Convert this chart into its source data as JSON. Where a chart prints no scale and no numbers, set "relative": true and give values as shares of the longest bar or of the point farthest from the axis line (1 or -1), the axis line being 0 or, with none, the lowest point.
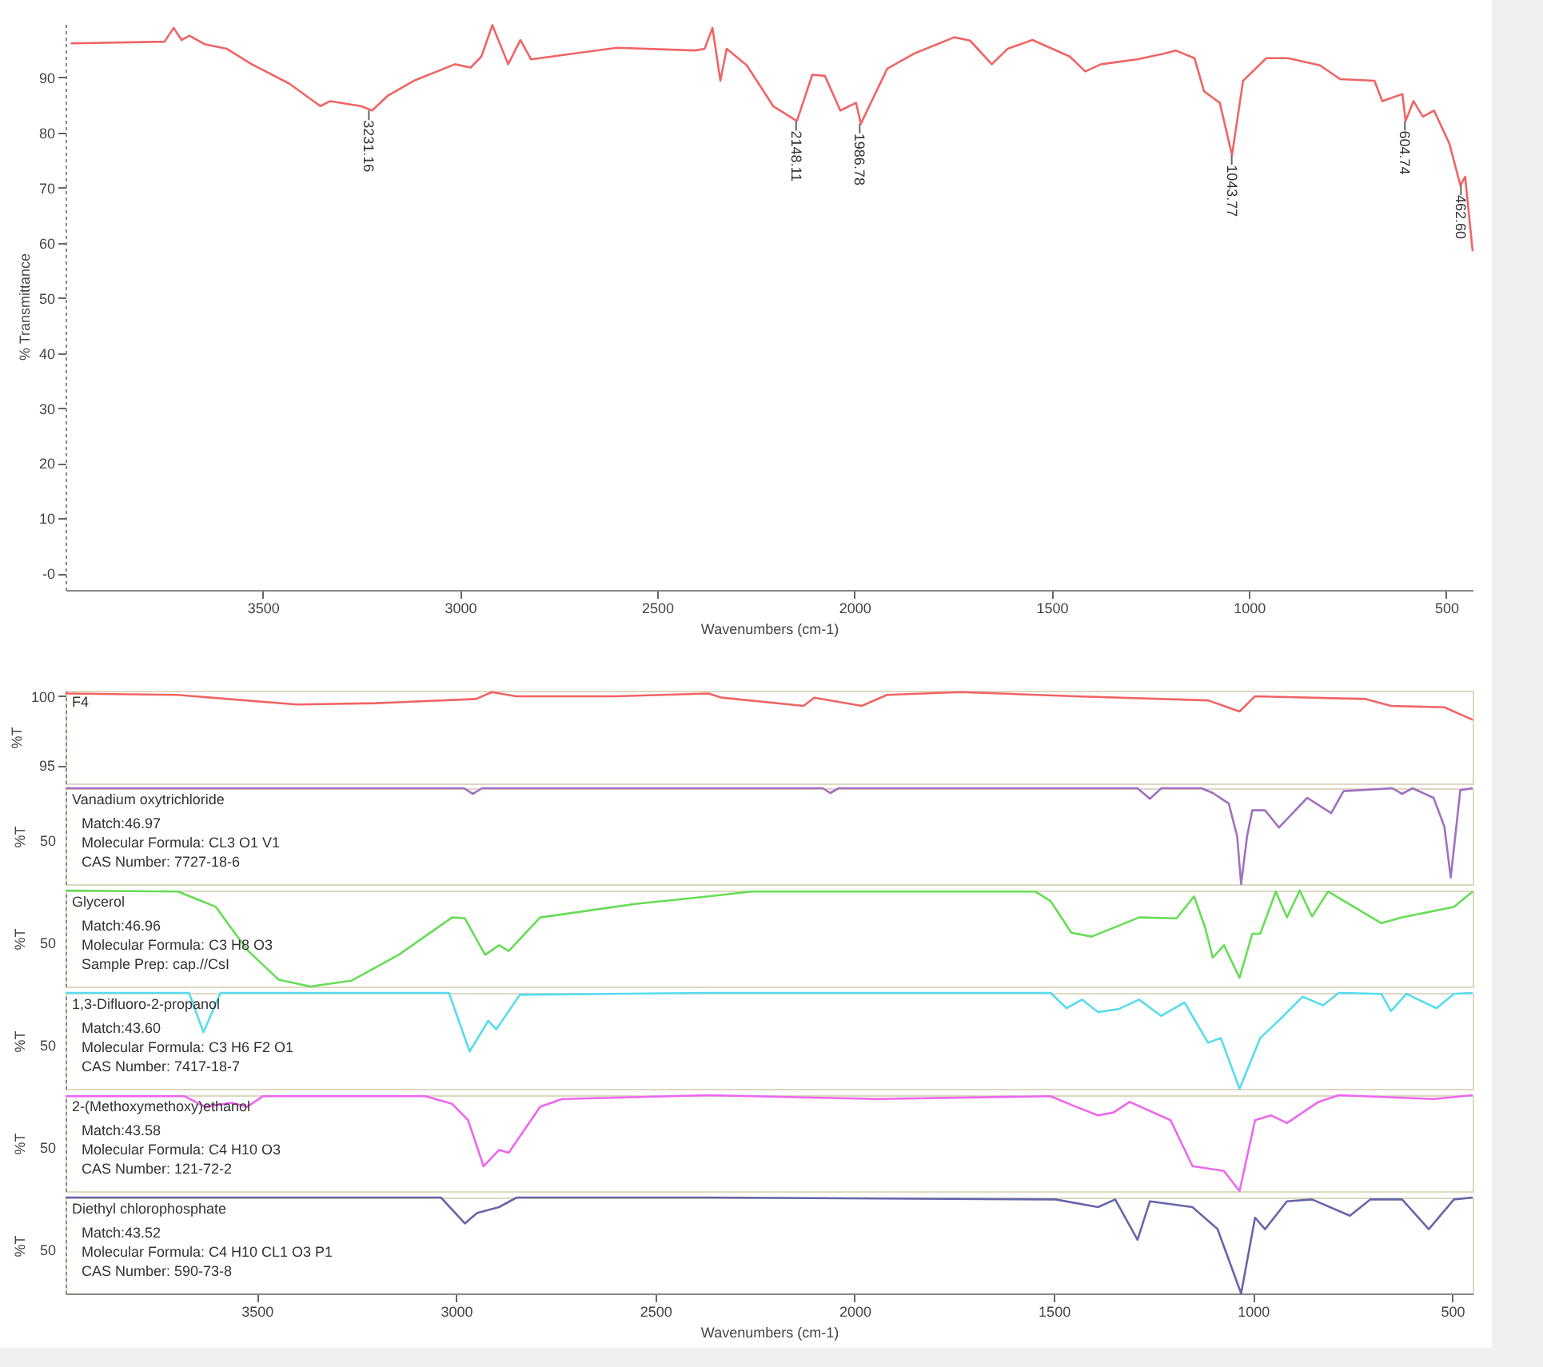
{
  "chart_data": [
    {
      "type": "line",
      "xlabel": "Wavenumbers (cm-1)",
      "ylabel": "% Transmittance",
      "xlim": [
        4000,
        433
      ],
      "xticks": [
        3500,
        3000,
        2500,
        2000,
        1500,
        1000,
        500
      ],
      "ylim": [
        -3,
        100
      ],
      "yticks": [
        {
          "value": 0,
          "label": "-0"
        },
        10,
        20,
        30,
        40,
        50,
        60,
        70,
        80,
        90
      ],
      "grid": false,
      "x": [
        3987,
        3749,
        3726,
        3706,
        3686,
        3646,
        3591,
        3528,
        3433,
        3354,
        3330,
        3251,
        3223,
        3183,
        3117,
        3013,
        2973,
        2946,
        2918,
        2878,
        2847,
        2820,
        2602,
        2405,
        2380,
        2360,
        2340,
        2324,
        2273,
        2206,
        2146,
        2107,
        2075,
        2036,
        1996,
        1984,
        1917,
        1850,
        1747,
        1707,
        1652,
        1612,
        1549,
        1454,
        1415,
        1375,
        1284,
        1217,
        1186,
        1138,
        1114,
        1074,
        1043,
        1015,
        956,
        901,
        820,
        769,
        682,
        662,
        611,
        603,
        583,
        559,
        531,
        492,
        464,
        452,
        433
      ],
      "series": [
        {
          "color": "#f06464",
          "values": [
            96.2,
            96.5,
            99.0,
            96.8,
            97.6,
            96.0,
            95.2,
            92.4,
            88.9,
            84.8,
            85.7,
            84.8,
            84.0,
            86.7,
            89.4,
            92.4,
            91.8,
            93.8,
            99.5,
            92.4,
            96.8,
            93.3,
            95.4,
            94.9,
            95.2,
            99.0,
            89.4,
            95.2,
            92.2,
            84.8,
            82.1,
            90.5,
            90.3,
            84.0,
            85.4,
            81.6,
            91.6,
            94.3,
            97.3,
            96.7,
            92.4,
            95.2,
            96.8,
            93.8,
            91.1,
            92.4,
            93.3,
            94.3,
            94.9,
            93.5,
            87.5,
            85.4,
            75.9,
            89.4,
            93.5,
            93.5,
            92.2,
            89.7,
            89.4,
            85.7,
            87.0,
            82.1,
            85.7,
            82.9,
            84.0,
            78.0,
            70.4,
            72.0,
            58.5
          ]
        }
      ],
      "annotations": [
        {
          "text": "3231.16",
          "x": 3231.16,
          "y": 84.0
        },
        {
          "text": "2148.11",
          "x": 2148.11,
          "y": 82.1
        },
        {
          "text": "1986.78",
          "x": 1986.78,
          "y": 81.6
        },
        {
          "text": "1043.77",
          "x": 1043.77,
          "y": 75.9
        },
        {
          "text": "604.74",
          "x": 604.74,
          "y": 82.1
        },
        {
          "text": "462.60",
          "x": 462.6,
          "y": 70.4
        }
      ]
    },
    {
      "type": "line",
      "ylabel": "%T",
      "xlim": [
        3980,
        449
      ],
      "xticks": [
        3500,
        3000,
        2500,
        2000,
        1500,
        1000,
        500
      ],
      "ylim": [
        93.7,
        100.4
      ],
      "yticks": [
        95,
        100
      ],
      "grid": false,
      "tick_labels": "y",
      "x": [
        3980,
        3700,
        3400,
        3200,
        2950,
        2910,
        2850,
        2600,
        2366,
        2334,
        2128,
        2101,
        1982,
        1919,
        1733,
        1445,
        1113,
        1034,
        995,
        717,
        654,
        520,
        449
      ],
      "series": [
        {
          "name": "F4",
          "color": "#f06464",
          "values": [
            100.2,
            100.1,
            99.4,
            99.5,
            99.8,
            100.3,
            100.0,
            100.0,
            100.2,
            99.9,
            99.3,
            99.9,
            99.3,
            100.1,
            100.3,
            100.0,
            99.7,
            98.9,
            100.0,
            99.8,
            99.3,
            99.2,
            98.3
          ]
        }
      ]
    },
    {
      "type": "line",
      "ylabel": "%T",
      "relative": true,
      "xlim": [
        3980,
        449
      ],
      "xticks": [
        3500,
        3000,
        2500,
        2000,
        1500,
        1000,
        500
      ],
      "grid": false,
      "tick_labels": "y",
      "x": [
        3980,
        2980,
        2958,
        2935,
        2080,
        2061,
        2040,
        1290,
        1259,
        1230,
        1130,
        1101,
        1061,
        1040,
        1030,
        1015,
        1002,
        970,
        935,
        864,
        804,
        773,
        650,
        626,
        600,
        547,
        520,
        504,
        490,
        480,
        449
      ],
      "series": [
        {
          "name": "Vanadium oxytrichloride",
          "color": "#a070c0",
          "values": [
            1,
            1,
            0.94,
            1,
            1,
            0.95,
            1,
            1,
            0.89,
            1,
            1,
            0.95,
            0.84,
            0.5,
            0,
            0.5,
            0.77,
            0.77,
            0.59,
            0.9,
            0.74,
            0.97,
            1,
            0.94,
            1,
            0.9,
            0.6,
            0.07,
            0.6,
            0.98,
            1
          ]
        }
      ],
      "annotations": [
        "50",
        "Match:46.97",
        "Molecular Formula:  CL3 O1 V1",
        "CAS Number:  7727-18-6"
      ]
    },
    {
      "type": "line",
      "ylabel": "%T",
      "relative": true,
      "xlim": [
        3980,
        449
      ],
      "xticks": [
        3500,
        3000,
        2500,
        2000,
        1500,
        1000,
        500
      ],
      "grid": false,
      "tick_labels": "y",
      "x": [
        3980,
        3698,
        3603,
        3524,
        3445,
        3366,
        3263,
        3144,
        3010,
        2978,
        2927,
        2892,
        2868,
        2789,
        2551,
        2366,
        2259,
        1547,
        1508,
        1456,
        1405,
        1286,
        1192,
        1148,
        1120,
        1101,
        1073,
        1034,
        1002,
        982,
        943,
        915,
        883,
        852,
        812,
        678,
        626,
        496,
        449
      ],
      "series": [
        {
          "name": "Glycerol",
          "color": "#66dd55",
          "values": [
            1,
            0.99,
            0.83,
            0.38,
            0.07,
            0,
            0.06,
            0.33,
            0.72,
            0.71,
            0.33,
            0.43,
            0.37,
            0.72,
            0.86,
            0.94,
            0.99,
            0.99,
            0.89,
            0.56,
            0.52,
            0.72,
            0.71,
            0.94,
            0.61,
            0.3,
            0.43,
            0.09,
            0.55,
            0.55,
            0.99,
            0.72,
            1,
            0.73,
            0.99,
            0.66,
            0.72,
            0.83,
            0.99
          ]
        }
      ],
      "annotations": [
        "50",
        "Match:46.96",
        "Molecular Formula:  C3 H8 O3",
        "Sample Prep:  cap.//CsI"
      ]
    },
    {
      "type": "line",
      "ylabel": "%T",
      "relative": true,
      "xlim": [
        3980,
        449
      ],
      "xticks": [
        3500,
        3000,
        2500,
        2000,
        1500,
        1000,
        500
      ],
      "grid": false,
      "tick_labels": "y",
      "x": [
        3980,
        3670,
        3634,
        3591,
        3018,
        2966,
        2919,
        2899,
        2840,
        2366,
        1508,
        1468,
        1429,
        1389,
        1338,
        1286,
        1231,
        1172,
        1113,
        1081,
        1034,
        982,
        931,
        876,
        824,
        785,
        678,
        654,
        615,
        540,
        496,
        449
      ],
      "series": [
        {
          "name": "1,3-Difluoro-2-propanol",
          "color": "#55ddee",
          "values": [
            1,
            1,
            0.59,
            1,
            1,
            0.39,
            0.71,
            0.62,
            0.98,
            1,
            1,
            0.84,
            0.93,
            0.8,
            0.83,
            0.93,
            0.76,
            0.9,
            0.48,
            0.53,
            0,
            0.53,
            0.73,
            0.96,
            0.87,
            1,
            0.99,
            0.81,
            0.99,
            0.84,
            0.99,
            1
          ]
        }
      ],
      "annotations": [
        "50",
        "Match:43.60",
        "Molecular Formula:  C3 H6 F2 O1",
        "CAS Number:  7417-18-7"
      ]
    },
    {
      "type": "line",
      "ylabel": "%T",
      "relative": true,
      "xlim": [
        3980,
        449
      ],
      "xticks": [
        3500,
        3000,
        2500,
        2000,
        1500,
        1000,
        500
      ],
      "grid": false,
      "tick_labels": "y",
      "x": [
        3980,
        3682,
        3630,
        3563,
        3524,
        3484,
        3077,
        3010,
        2970,
        2931,
        2892,
        2868,
        2789,
        2734,
        2366,
        1943,
        1508,
        1445,
        1389,
        1350,
        1310,
        1207,
        1152,
        1073,
        1034,
        995,
        955,
        915,
        836,
        785,
        547,
        449
      ],
      "series": [
        {
          "name": "2-(Methoxymethoxy)ethanol",
          "color": "#ee66ee",
          "values": [
            0.99,
            0.99,
            0.88,
            0.92,
            0.88,
            0.99,
            0.99,
            0.91,
            0.74,
            0.26,
            0.43,
            0.4,
            0.88,
            0.96,
            1,
            0.96,
            0.99,
            0.88,
            0.79,
            0.82,
            0.93,
            0.74,
            0.26,
            0.21,
            0,
            0.74,
            0.79,
            0.71,
            0.93,
            1,
            0.96,
            1
          ]
        }
      ],
      "annotations": [
        "50",
        "Match:43.58",
        "Molecular Formula:  C4 H10 O3",
        "CAS Number:  121-72-2"
      ]
    },
    {
      "type": "line",
      "xlabel": "Wavenumbers (cm-1)",
      "ylabel": "%T",
      "relative": true,
      "xlim": [
        3980,
        449
      ],
      "xticks": [
        3500,
        3000,
        2500,
        2000,
        1500,
        1000,
        500
      ],
      "grid": false,
      "x": [
        3980,
        3038,
        2978,
        2947,
        2892,
        2848,
        2366,
        1496,
        1389,
        1346,
        1290,
        1259,
        1152,
        1089,
        1030,
        995,
        970,
        915,
        852,
        757,
        706,
        626,
        559,
        496,
        449
      ],
      "series": [
        {
          "name": "Diethyl chlorophosphate",
          "color": "#6666aa",
          "values": [
            1,
            1,
            0.73,
            0.84,
            0.9,
            1,
            1,
            0.98,
            0.9,
            0.98,
            0.56,
            0.96,
            0.9,
            0.67,
            0,
            0.79,
            0.67,
            0.96,
            0.98,
            0.81,
            0.98,
            0.98,
            0.67,
            0.98,
            1
          ]
        }
      ],
      "annotations": [
        "50",
        "Match:43.52",
        "Molecular Formula:  C4 H10 CL1 O3 P1",
        "CAS Number:  590-73-8"
      ]
    }
  ]
}
